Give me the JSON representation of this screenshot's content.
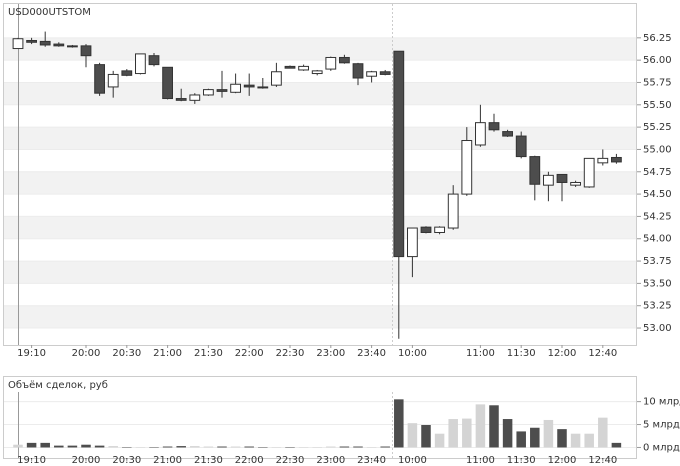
{
  "chart_data": [
    {
      "type": "candlestick",
      "title": "USD000UTSTOM",
      "categories": [
        null,
        "19:10",
        null,
        null,
        null,
        "20:00",
        null,
        null,
        "20:30",
        null,
        null,
        "21:00",
        null,
        null,
        "21:30",
        null,
        null,
        "22:00",
        null,
        null,
        "22:30",
        null,
        null,
        "23:00",
        null,
        null,
        "23:40",
        null,
        null,
        "10:00",
        null,
        null,
        null,
        null,
        "11:00",
        null,
        null,
        "11:30",
        null,
        null,
        "12:00",
        null,
        null,
        "12:40",
        null
      ],
      "open": [
        56.13,
        56.22,
        56.21,
        56.18,
        56.16,
        56.16,
        55.95,
        55.7,
        55.88,
        55.85,
        56.05,
        55.92,
        55.57,
        55.55,
        55.61,
        55.67,
        55.64,
        55.72,
        55.7,
        55.72,
        55.93,
        55.89,
        55.85,
        55.9,
        56.03,
        55.96,
        55.82,
        55.87,
        56.1,
        53.8,
        54.13,
        54.07,
        54.12,
        54.5,
        55.05,
        55.3,
        55.2,
        55.15,
        54.92,
        54.6,
        54.72,
        54.6,
        54.58,
        54.85,
        54.91
      ],
      "high": [
        56.25,
        56.25,
        56.32,
        56.2,
        56.17,
        56.18,
        55.97,
        55.88,
        55.9,
        56.07,
        56.08,
        55.92,
        55.68,
        55.63,
        55.68,
        55.88,
        55.85,
        55.85,
        55.8,
        55.97,
        55.94,
        55.95,
        55.89,
        56.04,
        56.06,
        55.97,
        55.88,
        55.89,
        56.1,
        54.12,
        54.14,
        54.14,
        54.6,
        55.25,
        55.5,
        55.4,
        55.22,
        55.2,
        54.93,
        54.75,
        54.72,
        54.65,
        54.9,
        55.0,
        54.95
      ],
      "low": [
        56.13,
        56.18,
        56.15,
        56.15,
        56.14,
        55.92,
        55.6,
        55.58,
        55.82,
        55.84,
        55.93,
        55.56,
        55.54,
        55.51,
        55.6,
        55.58,
        55.63,
        55.6,
        55.68,
        55.7,
        55.91,
        55.88,
        55.83,
        55.88,
        55.96,
        55.72,
        55.75,
        55.83,
        52.88,
        53.57,
        54.06,
        54.05,
        54.1,
        54.48,
        55.03,
        55.2,
        55.14,
        54.9,
        54.43,
        54.42,
        54.42,
        54.58,
        54.57,
        54.82,
        54.84
      ],
      "close": [
        56.24,
        56.2,
        56.17,
        56.16,
        56.15,
        56.05,
        55.63,
        55.84,
        55.83,
        56.07,
        55.95,
        55.57,
        55.55,
        55.61,
        55.67,
        55.65,
        55.73,
        55.7,
        55.69,
        55.87,
        55.91,
        55.93,
        55.88,
        56.03,
        55.97,
        55.8,
        55.87,
        55.84,
        53.8,
        54.12,
        54.07,
        54.13,
        54.5,
        55.1,
        55.3,
        55.22,
        55.15,
        54.92,
        54.61,
        54.71,
        54.63,
        54.63,
        54.9,
        54.9,
        54.86
      ],
      "up_color": "#ffffff",
      "down_color": "#4d4d4d",
      "ylim": [
        52.81,
        56.64
      ],
      "yticks": [
        {
          "value": 53,
          "label": "53.00"
        },
        53.25,
        {
          "value": 53.5,
          "label": "53.50"
        },
        53.75,
        {
          "value": 54,
          "label": "54.00"
        },
        54.25,
        {
          "value": 54.5,
          "label": "54.50"
        },
        54.75,
        {
          "value": 55,
          "label": "55.00"
        },
        55.25,
        {
          "value": 55.5,
          "label": "55.50"
        },
        55.75,
        {
          "value": 56,
          "label": "56.00"
        },
        56.25
      ],
      "grid": true
    },
    {
      "type": "bar",
      "title": "Объём сделок, руб",
      "values": [
        0.6,
        1.0,
        1.0,
        0.4,
        0.4,
        0.6,
        0.4,
        0.3,
        0.1,
        0.1,
        0.1,
        0.2,
        0.3,
        0.3,
        0.2,
        0.2,
        0.2,
        0.2,
        0.1,
        0.1,
        0.1,
        0.1,
        0.1,
        0.2,
        0.2,
        0.2,
        0.1,
        0.2,
        10.5,
        5.3,
        4.9,
        3.0,
        6.2,
        6.3,
        9.4,
        9.2,
        6.2,
        3.5,
        4.3,
        6.0,
        4.0,
        3.0,
        3.0,
        6.5,
        1.0
      ],
      "up_color": "#d4d4d4",
      "down_color": "#4d4d4d",
      "ylim": [
        -2.3,
        12.1
      ],
      "yticks": [
        {
          "value": 0,
          "label": "0 млрд"
        },
        {
          "value": 5,
          "label": "5 млрд"
        },
        {
          "value": 10,
          "label": "10 млрд"
        }
      ],
      "grid": true
    }
  ]
}
